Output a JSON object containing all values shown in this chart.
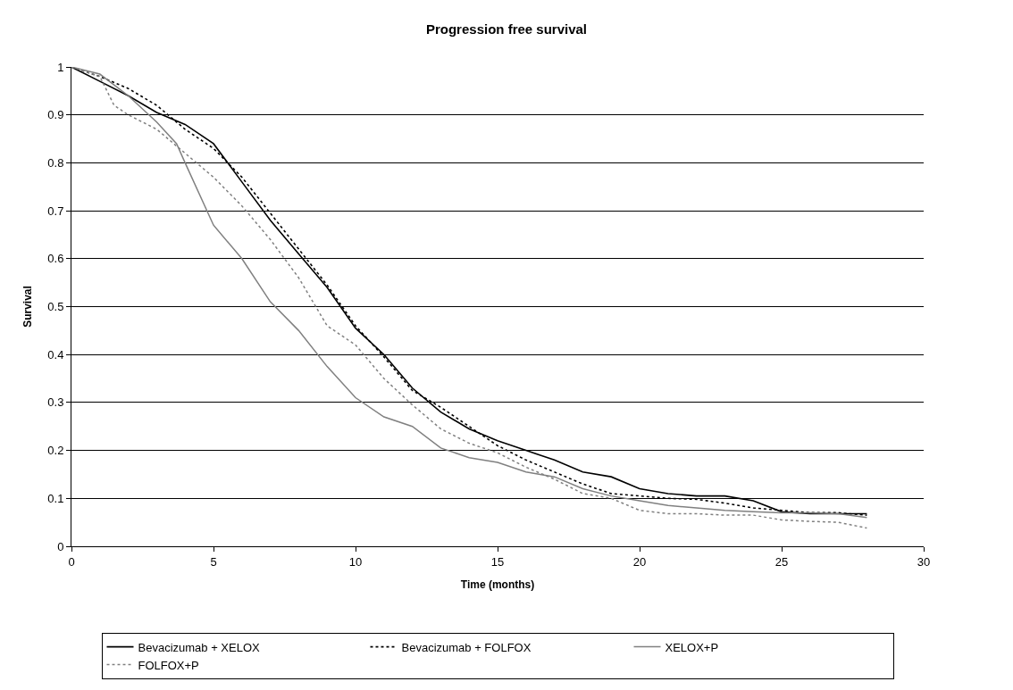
{
  "chart_data": {
    "type": "line",
    "title": "Progression free survival",
    "xlabel": "Time (months)",
    "ylabel": "Survival",
    "xlim": [
      0,
      30
    ],
    "xticks": [
      0,
      5,
      10,
      15,
      20,
      25,
      30
    ],
    "ylim": [
      0,
      1
    ],
    "yticks": [
      0,
      0.1,
      0.2,
      0.3,
      0.4,
      0.5,
      0.6,
      0.7,
      0.8,
      0.9,
      1
    ],
    "grid": "y",
    "legend": "bottom",
    "marker": "none",
    "series": [
      {
        "name": "Bevacizumab + XELOX",
        "color": "#000000",
        "line_style": "solid",
        "x": [
          0,
          1,
          2,
          3,
          4,
          5,
          6,
          7,
          8,
          9,
          10,
          11,
          12,
          13,
          14,
          15,
          16,
          17,
          18,
          19,
          20,
          21,
          22,
          23,
          24,
          25,
          26,
          27,
          28
        ],
        "values": [
          1,
          0.97,
          0.94,
          0.905,
          0.88,
          0.84,
          0.76,
          0.68,
          0.61,
          0.54,
          0.455,
          0.4,
          0.33,
          0.28,
          0.245,
          0.22,
          0.2,
          0.18,
          0.155,
          0.145,
          0.12,
          0.11,
          0.105,
          0.105,
          0.095,
          0.072,
          0.068,
          0.068,
          0.068
        ]
      },
      {
        "name": "Bevacizumab + FOLFOX",
        "color": "#000000",
        "line_style": "dotted",
        "x": [
          0,
          1,
          2,
          3,
          4,
          5,
          6,
          7,
          8,
          9,
          10,
          11,
          12,
          13,
          14,
          15,
          16,
          17,
          18,
          19,
          20,
          21,
          22,
          23,
          24,
          25,
          26,
          27,
          28
        ],
        "values": [
          1,
          0.98,
          0.955,
          0.92,
          0.87,
          0.83,
          0.77,
          0.695,
          0.62,
          0.545,
          0.46,
          0.395,
          0.325,
          0.29,
          0.25,
          0.21,
          0.18,
          0.155,
          0.13,
          0.11,
          0.105,
          0.1,
          0.098,
          0.09,
          0.08,
          0.075,
          0.07,
          0.07,
          0.065
        ]
      },
      {
        "name": "XELOX+P",
        "color": "#808080",
        "line_style": "solid",
        "x": [
          0,
          1,
          2,
          3,
          3.7,
          4,
          5,
          6,
          7,
          8,
          9,
          10,
          11,
          12,
          13,
          14,
          15,
          16,
          17,
          18,
          19,
          20,
          21,
          22,
          23,
          24,
          25,
          26,
          27,
          28
        ],
        "values": [
          1,
          0.985,
          0.94,
          0.885,
          0.84,
          0.8,
          0.67,
          0.6,
          0.51,
          0.45,
          0.375,
          0.31,
          0.27,
          0.25,
          0.205,
          0.185,
          0.175,
          0.155,
          0.145,
          0.12,
          0.105,
          0.095,
          0.085,
          0.08,
          0.075,
          0.072,
          0.07,
          0.07,
          0.068,
          0.06
        ]
      },
      {
        "name": "FOLFOX+P",
        "color": "#808080",
        "line_style": "dotted",
        "x": [
          0,
          1,
          1.5,
          2,
          3,
          4,
          5,
          6,
          7,
          8,
          9,
          10,
          11,
          12,
          13,
          14,
          15,
          16,
          17,
          18,
          19,
          20,
          21,
          22,
          23,
          24,
          25,
          26,
          27,
          28
        ],
        "values": [
          1,
          0.98,
          0.92,
          0.9,
          0.87,
          0.82,
          0.77,
          0.71,
          0.64,
          0.56,
          0.46,
          0.42,
          0.35,
          0.295,
          0.245,
          0.215,
          0.195,
          0.165,
          0.14,
          0.11,
          0.1,
          0.075,
          0.068,
          0.068,
          0.065,
          0.065,
          0.055,
          0.052,
          0.05,
          0.038
        ]
      }
    ]
  }
}
